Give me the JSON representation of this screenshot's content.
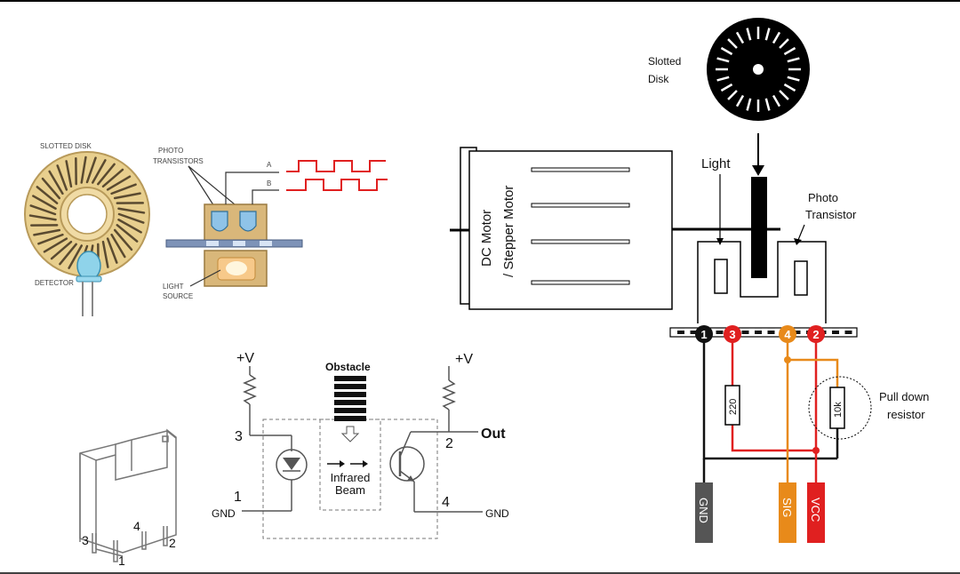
{
  "top_left_panel": {
    "slotted_disk": "SLOTTED DISK",
    "photo_transistors": [
      "PHOTO",
      "TRANSISTORS"
    ],
    "detector": "DETECTOR",
    "light_source": [
      "LIGHT",
      "SOURCE"
    ],
    "channel_a": "A",
    "channel_b": "B"
  },
  "circuit": {
    "vplus_left": "+V",
    "vplus_right": "+V",
    "obstacle": "Obstacle",
    "infrared_beam": [
      "Infrared",
      "Beam"
    ],
    "out": "Out",
    "gnd_left": "GND",
    "gnd_right": "GND",
    "pin_3": "3",
    "pin_1": "1",
    "pin_2": "2",
    "pin_4": "4"
  },
  "sensor_body": {
    "pin_3": "3",
    "pin_4": "4",
    "pin_2": "2",
    "pin_1": "1"
  },
  "right_diagram": {
    "slotted_disk": [
      "Slotted",
      "Disk"
    ],
    "motor": [
      "DC Motor",
      "/ Stepper Motor"
    ],
    "light": "Light",
    "photo_transistor": [
      "Photo",
      "Transistor"
    ],
    "pins": [
      {
        "num": "1",
        "color": "#111111"
      },
      {
        "num": "3",
        "color": "#e02020"
      },
      {
        "num": "4",
        "color": "#e88a1a"
      },
      {
        "num": "2",
        "color": "#e02020"
      }
    ],
    "resistor_220": "220",
    "resistor_10k": "10k",
    "pull_down": [
      "Pull down",
      "resistor"
    ],
    "tabs": [
      {
        "label": "GND",
        "color": "#555555"
      },
      {
        "label": "SIG",
        "color": "#e88a1a"
      },
      {
        "label": "VCC",
        "color": "#e02020"
      }
    ]
  },
  "colors": {
    "red_wire": "#e02020",
    "orange_wire": "#e88a1a",
    "dark_wire": "#111111",
    "disk_tan": "#e8cf8e",
    "body_tan": "#d9b77a"
  }
}
